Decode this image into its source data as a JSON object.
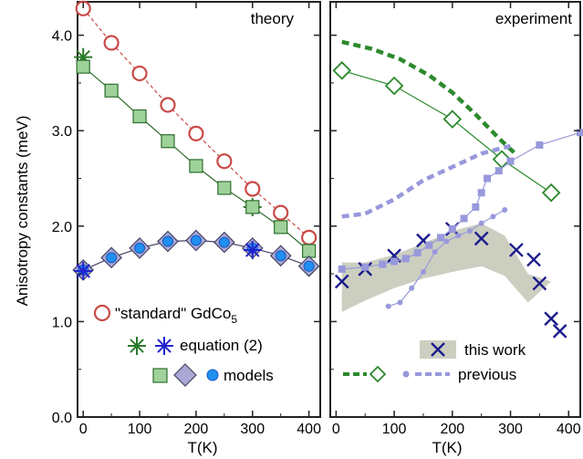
{
  "chart_data": [
    {
      "type": "line",
      "title": "theory",
      "xlabel": "T(K)",
      "ylabel": "Anisotropy constants (meV)",
      "xlim": [
        -10,
        420
      ],
      "ylim": [
        0,
        4.35
      ],
      "xticks": [
        0,
        100,
        200,
        300,
        400
      ],
      "xtick_labels": [
        "0",
        "100",
        "200",
        "300",
        "400"
      ],
      "yticks": [
        0,
        1,
        2,
        3,
        4
      ],
      "ytick_labels": [
        "0.0",
        "1.0",
        "2.0",
        "3.0",
        "4.0"
      ],
      "grid": false,
      "legend_position": "bottom-left",
      "series": [
        {
          "key": "std",
          "marker": "circle-open",
          "color": "#c94a45",
          "line": "dashed",
          "x": [
            0,
            50,
            100,
            150,
            200,
            250,
            300,
            350,
            400
          ],
          "y": [
            4.28,
            3.92,
            3.6,
            3.27,
            2.97,
            2.68,
            2.39,
            2.14,
            1.88
          ]
        },
        {
          "key": "eq_a",
          "marker": "star",
          "color": "#2a7a2a",
          "line": "none",
          "x": [
            0,
            300
          ],
          "y": [
            3.77,
            2.2
          ]
        },
        {
          "key": "mod_a",
          "marker": "square",
          "color": "#2e6e2e",
          "fill": "#9fd29a",
          "line": "solid",
          "x": [
            0,
            50,
            100,
            150,
            200,
            250,
            300,
            350,
            400
          ],
          "y": [
            3.67,
            3.42,
            3.15,
            2.89,
            2.63,
            2.4,
            2.2,
            1.99,
            1.74
          ]
        },
        {
          "key": "mod_b",
          "marker": "diamond",
          "color": "#444466",
          "fill": "#a9a9d4",
          "line": "solid",
          "x": [
            0,
            50,
            100,
            150,
            200,
            250,
            300,
            350,
            400
          ],
          "y": [
            1.54,
            1.67,
            1.77,
            1.84,
            1.85,
            1.83,
            1.77,
            1.69,
            1.58
          ]
        },
        {
          "key": "mod_c",
          "marker": "dot",
          "color": "#1f6fe0",
          "line": "none",
          "x": [
            0,
            50,
            100,
            150,
            200,
            250,
            300,
            350,
            400
          ],
          "y": [
            1.54,
            1.67,
            1.77,
            1.84,
            1.85,
            1.83,
            1.77,
            1.69,
            1.58
          ]
        },
        {
          "key": "eq_b",
          "marker": "star",
          "color": "#2222cc",
          "line": "none",
          "x": [
            0,
            300
          ],
          "y": [
            1.53,
            1.75
          ]
        }
      ]
    },
    {
      "type": "line",
      "title": "experiment",
      "xlabel": "T(K)",
      "xlim": [
        -10,
        420
      ],
      "ylim": [
        0,
        4.35
      ],
      "xticks": [
        0,
        100,
        200,
        300,
        400
      ],
      "xtick_labels": [
        "0",
        "100",
        "200",
        "300",
        "400"
      ],
      "grid": false,
      "legend_position": "bottom-right",
      "band": {
        "color": "#cccfc0",
        "x": [
          10,
          50,
          100,
          150,
          200,
          250,
          290,
          330,
          370,
          370,
          330,
          290,
          250,
          200,
          150,
          100,
          50,
          10
        ],
        "upper": [
          1.62,
          1.62,
          1.7,
          1.82,
          1.95,
          2.03,
          1.9,
          1.5,
          1.42,
          1.42,
          1.2,
          1.48,
          1.58,
          1.52,
          1.45,
          1.35,
          1.22,
          1.1
        ]
      },
      "series": [
        {
          "key": "this_work",
          "marker": "x",
          "color": "#1c1c8c",
          "line": "none",
          "x": [
            10,
            50,
            100,
            150,
            200,
            250,
            310,
            340,
            350,
            370,
            385
          ],
          "y": [
            1.42,
            1.55,
            1.69,
            1.85,
            1.97,
            1.87,
            1.75,
            1.65,
            1.4,
            1.03,
            0.9
          ]
        },
        {
          "key": "prev_green_line",
          "marker": "none",
          "color": "#2c8a2c",
          "line": "thick-dashed",
          "x": [
            10,
            60,
            110,
            160,
            200,
            240,
            280,
            310
          ],
          "y": [
            3.93,
            3.86,
            3.75,
            3.58,
            3.4,
            3.17,
            2.92,
            2.75
          ]
        },
        {
          "key": "prev_green_diamonds",
          "marker": "diamond-open",
          "color": "#2c8a2c",
          "line": "solid",
          "x": [
            10,
            100,
            200,
            285,
            370
          ],
          "y": [
            3.63,
            3.47,
            3.12,
            2.7,
            2.35
          ]
        },
        {
          "key": "prev_purple_line",
          "marker": "none",
          "color": "#9898dc",
          "line": "thick-dashed",
          "x": [
            10,
            50,
            100,
            150,
            200,
            250,
            300
          ],
          "y": [
            2.1,
            2.13,
            2.28,
            2.48,
            2.62,
            2.76,
            2.84
          ]
        },
        {
          "key": "prev_purple_squares",
          "marker": "square",
          "color": "#9898dc",
          "line": "solid",
          "x": [
            10,
            50,
            80,
            100,
            120,
            140,
            160,
            180,
            200,
            220,
            240,
            250,
            260,
            280,
            300,
            350,
            420
          ],
          "y": [
            1.55,
            1.57,
            1.6,
            1.63,
            1.66,
            1.72,
            1.8,
            1.88,
            1.97,
            2.08,
            2.2,
            2.35,
            2.5,
            2.58,
            2.68,
            2.85,
            2.98
          ]
        },
        {
          "key": "prev_purple_dots",
          "marker": "dot",
          "color": "#9898dc",
          "line": "solid",
          "x": [
            90,
            110,
            130,
            150,
            170,
            190,
            210,
            230,
            250,
            270,
            290
          ],
          "y": [
            1.16,
            1.2,
            1.35,
            1.52,
            1.73,
            1.84,
            1.9,
            1.95,
            2.03,
            2.1,
            2.17
          ]
        }
      ]
    }
  ],
  "legend_left": {
    "standard_label": "\"standard\" GdCo",
    "standard_sub": "5",
    "equation_label": "equation (2)",
    "models_label": "models"
  },
  "legend_right": {
    "this_work_label": "this work",
    "previous_label": "previous"
  },
  "colors": {
    "std": "#c94a45",
    "green_star": "#2a7a2a",
    "blue_star": "#2222cc",
    "square_fill": "#9fd29a",
    "square_edge": "#2e6e2e",
    "diamond_fill": "#a9a9d4",
    "diamond_edge": "#444466",
    "dot_fill": "#1f8ff0",
    "dot_edge": "#1f55c0",
    "exp_green": "#2c8a2c",
    "exp_purple": "#9898dc",
    "band": "#cccfc0",
    "cross": "#1c1c8c"
  }
}
